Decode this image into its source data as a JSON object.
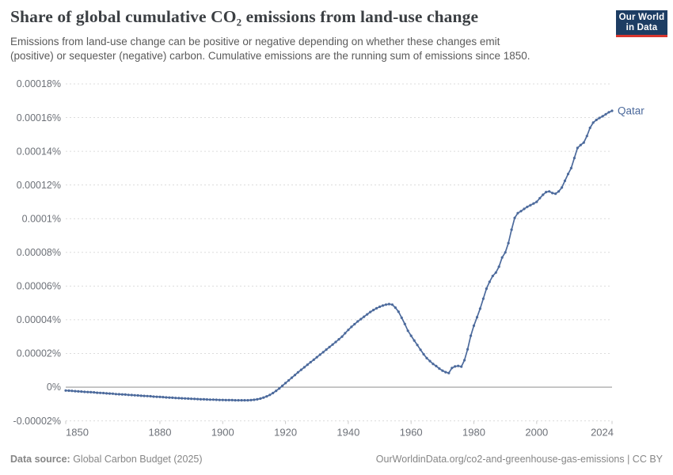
{
  "header": {
    "title": "Share of global cumulative CO₂ emissions from land-use change",
    "subtitle_line1": "Emissions from land-use change can be positive or negative depending on whether these changes emit",
    "subtitle_line2": "(positive) or sequester (negative) carbon. Cumulative emissions are the running sum of emissions since 1850.",
    "logo": {
      "line1": "Our World",
      "line2": "in Data"
    }
  },
  "footer": {
    "source_label": "Data source:",
    "source_value": " Global Carbon Budget (2025)",
    "attribution": "OurWorldinData.org/co2-and-greenhouse-gas-emissions | CC BY"
  },
  "colors": {
    "line": "#4c6a9c",
    "end_label": "#4c6a9c",
    "gridline": "#dcdcdc",
    "zero_line": "#9b9b9b",
    "tick_mark": "#c9c9c9",
    "logo_bg": "#1d3d63",
    "logo_red": "#d8352e"
  },
  "chart_data": {
    "type": "line",
    "title": "Share of global cumulative CO₂ emissions from land-use change",
    "xlabel": "",
    "ylabel": "",
    "unit": "%",
    "xlim": [
      1850,
      2024
    ],
    "ylim": [
      -2e-05,
      0.00018
    ],
    "grid": "dashed-horizontal",
    "legend_position": "end-of-line-label",
    "x_ticks": [
      1850,
      1880,
      1900,
      1920,
      1940,
      1960,
      1980,
      2000,
      2024
    ],
    "y_ticks": [
      {
        "v": 0.00018,
        "label": "0.00018%"
      },
      {
        "v": 0.00016,
        "label": "0.00016%"
      },
      {
        "v": 0.00014,
        "label": "0.00014%"
      },
      {
        "v": 0.00012,
        "label": "0.00012%"
      },
      {
        "v": 0.0001,
        "label": "0.0001%"
      },
      {
        "v": 8e-05,
        "label": "0.00008%"
      },
      {
        "v": 6e-05,
        "label": "0.00006%"
      },
      {
        "v": 4e-05,
        "label": "0.00004%"
      },
      {
        "v": 2e-05,
        "label": "0.00002%"
      },
      {
        "v": 0,
        "label": "0%"
      },
      {
        "v": -2e-05,
        "label": "-0.00002%"
      }
    ],
    "series": [
      {
        "name": "Qatar",
        "color": "#4c6a9c",
        "points": [
          [
            1850,
            -2e-06
          ],
          [
            1851,
            -2.1e-06
          ],
          [
            1852,
            -2.2e-06
          ],
          [
            1853,
            -2.4e-06
          ],
          [
            1854,
            -2.5e-06
          ],
          [
            1855,
            -2.6e-06
          ],
          [
            1856,
            -2.8e-06
          ],
          [
            1857,
            -2.9e-06
          ],
          [
            1858,
            -3e-06
          ],
          [
            1859,
            -3.1e-06
          ],
          [
            1860,
            -3.3e-06
          ],
          [
            1861,
            -3.4e-06
          ],
          [
            1862,
            -3.5e-06
          ],
          [
            1863,
            -3.7e-06
          ],
          [
            1864,
            -3.8e-06
          ],
          [
            1865,
            -3.9e-06
          ],
          [
            1866,
            -4.1e-06
          ],
          [
            1867,
            -4.2e-06
          ],
          [
            1868,
            -4.3e-06
          ],
          [
            1869,
            -4.4e-06
          ],
          [
            1870,
            -4.6e-06
          ],
          [
            1871,
            -4.7e-06
          ],
          [
            1872,
            -4.8e-06
          ],
          [
            1873,
            -4.9e-06
          ],
          [
            1874,
            -5.1e-06
          ],
          [
            1875,
            -5.2e-06
          ],
          [
            1876,
            -5.3e-06
          ],
          [
            1877,
            -5.4e-06
          ],
          [
            1878,
            -5.6e-06
          ],
          [
            1879,
            -5.7e-06
          ],
          [
            1880,
            -5.8e-06
          ],
          [
            1881,
            -5.9e-06
          ],
          [
            1882,
            -6.1e-06
          ],
          [
            1883,
            -6.2e-06
          ],
          [
            1884,
            -6.3e-06
          ],
          [
            1885,
            -6.4e-06
          ],
          [
            1886,
            -6.5e-06
          ],
          [
            1887,
            -6.6e-06
          ],
          [
            1888,
            -6.7e-06
          ],
          [
            1889,
            -6.8e-06
          ],
          [
            1890,
            -6.9e-06
          ],
          [
            1891,
            -7e-06
          ],
          [
            1892,
            -7.1e-06
          ],
          [
            1893,
            -7.2e-06
          ],
          [
            1894,
            -7.2e-06
          ],
          [
            1895,
            -7.3e-06
          ],
          [
            1896,
            -7.4e-06
          ],
          [
            1897,
            -7.4e-06
          ],
          [
            1898,
            -7.5e-06
          ],
          [
            1899,
            -7.6e-06
          ],
          [
            1900,
            -7.6e-06
          ],
          [
            1901,
            -7.7e-06
          ],
          [
            1902,
            -7.7e-06
          ],
          [
            1903,
            -7.7e-06
          ],
          [
            1904,
            -7.8e-06
          ],
          [
            1905,
            -7.8e-06
          ],
          [
            1906,
            -7.8e-06
          ],
          [
            1907,
            -7.8e-06
          ],
          [
            1908,
            -7.8e-06
          ],
          [
            1909,
            -7.7e-06
          ],
          [
            1910,
            -7.5e-06
          ],
          [
            1911,
            -7.2e-06
          ],
          [
            1912,
            -6.8e-06
          ],
          [
            1913,
            -6.2e-06
          ],
          [
            1914,
            -5.5e-06
          ],
          [
            1915,
            -4.6e-06
          ],
          [
            1916,
            -3.5e-06
          ],
          [
            1917,
            -2.2e-06
          ],
          [
            1918,
            -8e-07
          ],
          [
            1919,
            8e-07
          ],
          [
            1920,
            2.4e-06
          ],
          [
            1921,
            4e-06
          ],
          [
            1922,
            5.6e-06
          ],
          [
            1923,
            7.2e-06
          ],
          [
            1924,
            8.8e-06
          ],
          [
            1925,
            1.03e-05
          ],
          [
            1926,
            1.18e-05
          ],
          [
            1927,
            1.33e-05
          ],
          [
            1928,
            1.48e-05
          ],
          [
            1929,
            1.63e-05
          ],
          [
            1930,
            1.78e-05
          ],
          [
            1931,
            1.93e-05
          ],
          [
            1932,
            2.08e-05
          ],
          [
            1933,
            2.23e-05
          ],
          [
            1934,
            2.38e-05
          ],
          [
            1935,
            2.53e-05
          ],
          [
            1936,
            2.68e-05
          ],
          [
            1937,
            2.84e-05
          ],
          [
            1938,
            3e-05
          ],
          [
            1939,
            3.2e-05
          ],
          [
            1940,
            3.4e-05
          ],
          [
            1941,
            3.58e-05
          ],
          [
            1942,
            3.74e-05
          ],
          [
            1943,
            3.9e-05
          ],
          [
            1944,
            4.04e-05
          ],
          [
            1945,
            4.18e-05
          ],
          [
            1946,
            4.32e-05
          ],
          [
            1947,
            4.46e-05
          ],
          [
            1948,
            4.58e-05
          ],
          [
            1949,
            4.68e-05
          ],
          [
            1950,
            4.77e-05
          ],
          [
            1951,
            4.84e-05
          ],
          [
            1952,
            4.9e-05
          ],
          [
            1953,
            4.93e-05
          ],
          [
            1954,
            4.9e-05
          ],
          [
            1955,
            4.72e-05
          ],
          [
            1956,
            4.48e-05
          ],
          [
            1957,
            4.12e-05
          ],
          [
            1958,
            3.75e-05
          ],
          [
            1959,
            3.35e-05
          ],
          [
            1960,
            3.05e-05
          ],
          [
            1961,
            2.77e-05
          ],
          [
            1962,
            2.5e-05
          ],
          [
            1963,
            2.22e-05
          ],
          [
            1964,
            1.95e-05
          ],
          [
            1965,
            1.72e-05
          ],
          [
            1966,
            1.55e-05
          ],
          [
            1967,
            1.38e-05
          ],
          [
            1968,
            1.25e-05
          ],
          [
            1969,
            1.1e-05
          ],
          [
            1970,
            9.8e-06
          ],
          [
            1971,
            8.9e-06
          ],
          [
            1972,
            8.4e-06
          ],
          [
            1973,
            1.14e-05
          ],
          [
            1974,
            1.23e-05
          ],
          [
            1975,
            1.26e-05
          ],
          [
            1976,
            1.22e-05
          ],
          [
            1977,
            1.6e-05
          ],
          [
            1978,
            2.25e-05
          ],
          [
            1979,
            3.05e-05
          ],
          [
            1980,
            3.65e-05
          ],
          [
            1981,
            4.15e-05
          ],
          [
            1982,
            4.66e-05
          ],
          [
            1983,
            5.25e-05
          ],
          [
            1984,
            5.85e-05
          ],
          [
            1985,
            6.25e-05
          ],
          [
            1986,
            6.6e-05
          ],
          [
            1987,
            6.8e-05
          ],
          [
            1988,
            7.15e-05
          ],
          [
            1989,
            7.7e-05
          ],
          [
            1990,
            8e-05
          ],
          [
            1991,
            8.55e-05
          ],
          [
            1992,
            9.35e-05
          ],
          [
            1993,
            0.0001005
          ],
          [
            1994,
            0.0001033
          ],
          [
            1995,
            0.0001045
          ],
          [
            1996,
            0.0001058
          ],
          [
            1997,
            0.000107
          ],
          [
            1998,
            0.000108
          ],
          [
            1999,
            0.000109
          ],
          [
            2000,
            0.00011
          ],
          [
            2001,
            0.0001122
          ],
          [
            2002,
            0.0001142
          ],
          [
            2003,
            0.0001158
          ],
          [
            2004,
            0.0001162
          ],
          [
            2005,
            0.0001152
          ],
          [
            2006,
            0.0001148
          ],
          [
            2007,
            0.0001162
          ],
          [
            2008,
            0.0001185
          ],
          [
            2009,
            0.0001225
          ],
          [
            2010,
            0.0001265
          ],
          [
            2011,
            0.00013
          ],
          [
            2012,
            0.000136
          ],
          [
            2013,
            0.000142
          ],
          [
            2014,
            0.0001437
          ],
          [
            2015,
            0.0001452
          ],
          [
            2016,
            0.0001491
          ],
          [
            2017,
            0.0001539
          ],
          [
            2018,
            0.000157
          ],
          [
            2019,
            0.0001586
          ],
          [
            2020,
            0.0001598
          ],
          [
            2021,
            0.0001608
          ],
          [
            2022,
            0.000162
          ],
          [
            2023,
            0.0001632
          ],
          [
            2024,
            0.000164
          ]
        ]
      }
    ]
  }
}
